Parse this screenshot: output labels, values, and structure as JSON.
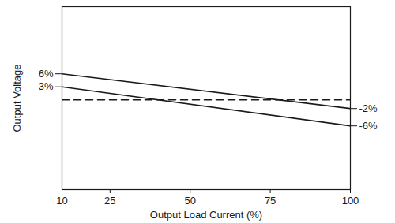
{
  "chart_data": {
    "type": "line",
    "x_label": "Output Load Current (%)",
    "y_label": "Output Voltage",
    "x": [
      10,
      100
    ],
    "xlim": [
      10,
      100
    ],
    "xticks": [
      10,
      25,
      50,
      75,
      100
    ],
    "ylim": [
      -20.7,
      21.5
    ],
    "yticks": [
      {
        "value": 6,
        "label": "6%"
      },
      {
        "value": 3,
        "label": "3%"
      }
    ],
    "y2lim": [
      -20.7,
      21.5
    ],
    "y2ticks": [
      {
        "value": -2,
        "label": "-2%"
      },
      {
        "value": -6,
        "label": "-6%"
      }
    ],
    "grid": false,
    "series": [
      {
        "color": "#1a1a1a",
        "values": [
          6,
          -2
        ],
        "line_style": "solid"
      },
      {
        "color": "#1a1a1a",
        "values": [
          3,
          -6
        ],
        "line_style": "solid"
      },
      {
        "color": "#1a1a1a",
        "values": [
          0,
          0
        ],
        "line_style": "dashed"
      }
    ]
  }
}
